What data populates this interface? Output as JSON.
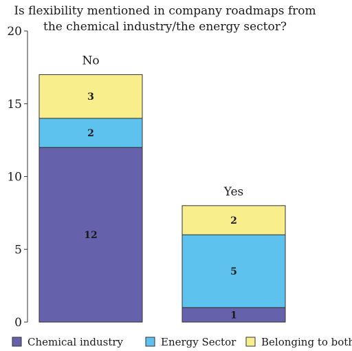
{
  "chart_data": {
    "type": "bar",
    "stacked": true,
    "title_lines": [
      "Is flexibility mentioned in company roadmaps from",
      "the chemical industry/the energy sector?"
    ],
    "categories": [
      "No",
      "Yes"
    ],
    "series": [
      {
        "name": "Chemical industry",
        "values": [
          12,
          1
        ],
        "color": "#6661ab"
      },
      {
        "name": "Energy Sector",
        "values": [
          2,
          5
        ],
        "color": "#5dc3ee"
      },
      {
        "name": "Belonging to both",
        "values": [
          3,
          2
        ],
        "color": "#f8ef8c"
      }
    ],
    "ylim": [
      0,
      20
    ],
    "yticks": [
      "0",
      "5",
      "10",
      "15",
      "20"
    ],
    "ytick_values": [
      0,
      5,
      10,
      15,
      20
    ],
    "legend_position": "bottom",
    "grid": false
  }
}
